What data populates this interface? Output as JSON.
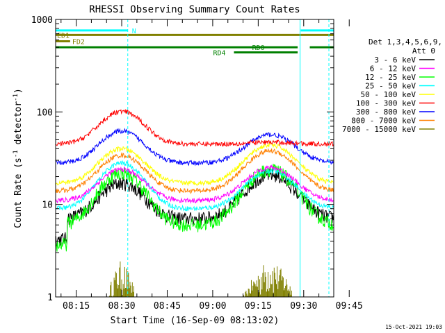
{
  "chart_data": {
    "type": "line",
    "title": "RHESSI Observing Summary Count Rates",
    "xlabel": "Start Time (16-Sep-09 08:13:02)",
    "ylabel_main": "Count Rate (s",
    "ylabel_sup1": "-1",
    "ylabel_mid": " detector",
    "ylabel_sup2": "-1",
    "ylabel_end": ")",
    "yscale": "log",
    "xlim_minutes": [
      8.2167,
      99.9
    ],
    "ylim": [
      1,
      1000
    ],
    "x_ticks": [
      {
        "label": "08:15",
        "value": 15
      },
      {
        "label": "08:30",
        "value": 30
      },
      {
        "label": "08:45",
        "value": 45
      },
      {
        "label": "09:00",
        "value": 60
      },
      {
        "label": "09:15",
        "value": 75
      },
      {
        "label": "09:30",
        "value": 90
      },
      {
        "label": "09:45",
        "value": 105
      }
    ],
    "y_ticks": [
      {
        "label": "1",
        "value": 1
      },
      {
        "label": "10",
        "value": 10
      },
      {
        "label": "100",
        "value": 100
      },
      {
        "label": "1000",
        "value": 1000
      }
    ],
    "legend": {
      "header1": "Det 1,3,4,5,6,9,",
      "header2": "Att 0",
      "placement": "right"
    },
    "series": [
      {
        "name": "3 - 6 keV",
        "color": "#000000",
        "base": 7,
        "peak1": 17,
        "peak2": 21
      },
      {
        "name": "6 - 12 keV",
        "color": "#ff00ff",
        "base": 11,
        "peak1": 24,
        "peak2": 25
      },
      {
        "name": "12 - 25 keV",
        "color": "#00ff00",
        "base": 6,
        "peak1": 22,
        "peak2": 24
      },
      {
        "name": "25 - 50 keV",
        "color": "#00ffff",
        "base": 9,
        "peak1": 28,
        "peak2": 23
      },
      {
        "name": "50 - 100 keV",
        "color": "#ffff00",
        "base": 17,
        "peak1": 40,
        "peak2": 44
      },
      {
        "name": "100 - 300 keV",
        "color": "#ff0000",
        "base": 45,
        "peak1": 101,
        "peak2": 47
      },
      {
        "name": "300 - 800 keV",
        "color": "#0000ff",
        "base": 28,
        "peak1": 62,
        "peak2": 57
      },
      {
        "name": "800 - 7000 keV",
        "color": "#ff8000",
        "base": 14,
        "peak1": 34,
        "peak2": 38
      },
      {
        "name": "7000 - 15000 keV",
        "color": "#808000",
        "base": 1,
        "peak1": 2.5,
        "peak2": 2.6
      }
    ],
    "flags": [
      {
        "label": "N",
        "color": "#00ffff",
        "level": 760,
        "segments": [
          [
            8.2167,
            32
          ],
          [
            89,
            99.9
          ]
        ]
      },
      {
        "label": "ED1",
        "color": "#808000",
        "level": 680,
        "segments": [
          [
            8.2167,
            99.9
          ]
        ]
      },
      {
        "label": "FD2",
        "color": "#808000",
        "level": 580,
        "segments": [
          [
            8.2167,
            13
          ]
        ]
      },
      {
        "label": "RD0",
        "color": "#008000",
        "level": 500,
        "segments": [
          [
            8.2167,
            88
          ],
          [
            92,
            99.9
          ]
        ]
      },
      {
        "label": "RD4",
        "color": "#008000",
        "level": 440,
        "segments": [
          [
            67,
            88
          ]
        ]
      }
    ],
    "vertical_lines": [
      {
        "x": 32,
        "style": "dashed",
        "color": "#00ffff"
      },
      {
        "x": 88.8,
        "style": "solid",
        "color": "#00ffff"
      },
      {
        "x": 98.3,
        "style": "dashed",
        "color": "#00ffff"
      },
      {
        "x": 8.2167,
        "style": "solid",
        "color": "#00ffff"
      }
    ]
  },
  "timestamp": "15-Oct-2021 19:03"
}
